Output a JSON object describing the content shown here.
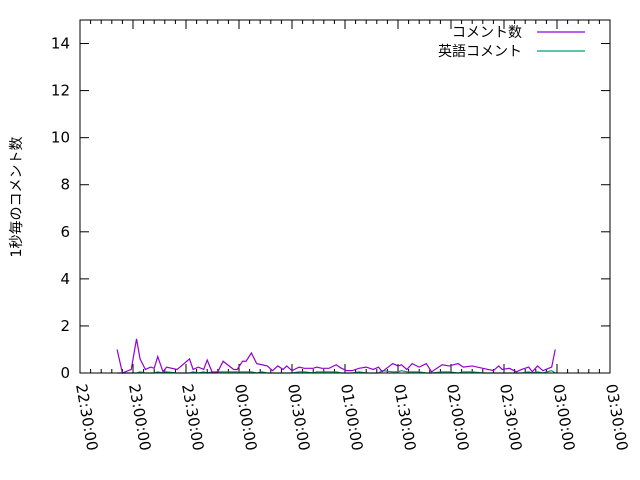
{
  "chart_data": {
    "type": "line",
    "title": "",
    "xlabel": "",
    "ylabel": "1秒毎のコメント数",
    "xlim": [
      "22:30:00",
      "03:30:00"
    ],
    "ylim": [
      0,
      15
    ],
    "x_ticks": [
      "22:30:00",
      "23:00:00",
      "23:30:00",
      "00:00:00",
      "00:30:00",
      "01:00:00",
      "01:30:00",
      "02:00:00",
      "02:30:00",
      "03:00:00",
      "03:30:00"
    ],
    "y_ticks": [
      "0",
      "2",
      "4",
      "6",
      "8",
      "10",
      "12",
      "14"
    ],
    "grid": false,
    "legend_position": "top-right",
    "x": [
      "22:51",
      "22:54",
      "22:59",
      "23:02",
      "23:04",
      "23:07",
      "23:10",
      "23:12",
      "23:14",
      "23:17",
      "23:19",
      "23:25",
      "23:32",
      "23:34",
      "23:37",
      "23:40",
      "23:42",
      "23:45",
      "23:48",
      "23:51",
      "23:57",
      "23:59",
      "00:02",
      "00:04",
      "00:07",
      "00:10",
      "00:13",
      "00:16",
      "00:19",
      "00:22",
      "00:25",
      "00:27",
      "00:30",
      "00:34",
      "00:37",
      "00:42",
      "00:44",
      "00:47",
      "00:51",
      "00:55",
      "00:58",
      "01:01",
      "01:04",
      "01:08",
      "01:12",
      "01:16",
      "01:19",
      "01:21",
      "01:27",
      "01:30",
      "01:32",
      "01:35",
      "01:38",
      "01:42",
      "01:46",
      "01:49",
      "01:55",
      "01:59",
      "02:04",
      "02:07",
      "02:12",
      "02:18",
      "02:24",
      "02:27",
      "02:29",
      "02:33",
      "02:37",
      "02:40",
      "02:44",
      "02:46",
      "02:49",
      "02:52",
      "02:57",
      "02:59"
    ],
    "series": [
      {
        "name": "コメント数",
        "color": "#9400d3",
        "values": [
          1.0,
          0.0,
          0.15,
          1.45,
          0.6,
          0.15,
          0.25,
          0.2,
          0.7,
          0.05,
          0.25,
          0.15,
          0.6,
          0.15,
          0.25,
          0.15,
          0.55,
          0.0,
          0.05,
          0.5,
          0.15,
          0.15,
          0.5,
          0.5,
          0.85,
          0.4,
          0.35,
          0.3,
          0.1,
          0.3,
          0.15,
          0.3,
          0.1,
          0.25,
          0.2,
          0.2,
          0.25,
          0.2,
          0.2,
          0.35,
          0.2,
          0.1,
          0.1,
          0.2,
          0.25,
          0.15,
          0.25,
          0.05,
          0.4,
          0.3,
          0.35,
          0.15,
          0.4,
          0.25,
          0.4,
          0.05,
          0.35,
          0.3,
          0.4,
          0.25,
          0.3,
          0.2,
          0.1,
          0.3,
          0.15,
          0.2,
          0.05,
          0.15,
          0.25,
          0.05,
          0.3,
          0.1,
          0.25,
          1.0
        ]
      },
      {
        "name": "英語コメント",
        "color": "#009e73",
        "values": [
          0,
          0,
          0,
          0,
          0.05,
          0,
          0,
          0,
          0.05,
          0,
          0.05,
          0,
          0,
          0.05,
          0,
          0.05,
          0,
          0.05,
          0.05,
          0.05,
          0.05,
          0.05,
          0.05,
          0.05,
          0.05,
          0,
          0.05,
          0,
          0,
          0,
          0,
          0,
          0,
          0.05,
          0.05,
          0,
          0.05,
          0.05,
          0.05,
          0.05,
          0,
          0,
          0,
          0.05,
          0,
          0,
          0,
          0.1,
          0.05,
          0.05,
          0.1,
          0.05,
          0.05,
          0.05,
          0,
          0,
          0.05,
          0.05,
          0,
          0.05,
          0.05,
          0,
          0,
          0,
          0,
          0,
          0,
          0,
          0.05,
          0,
          0.05,
          0,
          0.1,
          0
        ]
      }
    ]
  }
}
